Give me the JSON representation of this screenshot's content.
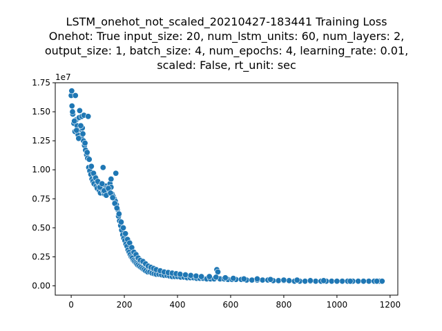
{
  "chart_data": {
    "type": "scatter",
    "title_lines": [
      "LSTM_onehot_not_scaled_20210427-183441 Training Loss",
      "Onehot: True input_size: 20, num_lstm_units: 60, num_layers: 2,",
      "output_size: 1, batch_size: 4, num_epochs: 4, learning_rate: 0.01,",
      "scaled: False, rt_unit: sec"
    ],
    "xlabel": "",
    "ylabel": "",
    "y_offset_label": "1e7",
    "xlim": [
      -60,
      1229
    ],
    "ylim": [
      -0.08,
      1.75
    ],
    "x_ticks": [
      {
        "value": 0,
        "label": "0"
      },
      {
        "value": 200,
        "label": "200"
      },
      {
        "value": 400,
        "label": "400"
      },
      {
        "value": 600,
        "label": "600"
      },
      {
        "value": 800,
        "label": "800"
      },
      {
        "value": 1000,
        "label": "1000"
      },
      {
        "value": 1200,
        "label": "1200"
      }
    ],
    "y_ticks": [
      {
        "value": 0.0,
        "label": "0.00"
      },
      {
        "value": 0.25,
        "label": "0.25"
      },
      {
        "value": 0.5,
        "label": "0.50"
      },
      {
        "value": 0.75,
        "label": "0.75"
      },
      {
        "value": 1.0,
        "label": "1.00"
      },
      {
        "value": 1.25,
        "label": "1.25"
      },
      {
        "value": 1.5,
        "label": "1.50"
      },
      {
        "value": 1.75,
        "label": "1.75"
      }
    ],
    "grid": false,
    "marker_color": "#1f77b4",
    "marker_edge_color": "#ffffff",
    "series": [
      {
        "x": [
          0,
          3,
          6,
          10,
          14,
          18,
          22,
          26,
          30,
          34,
          38,
          42,
          46,
          50,
          54,
          58,
          62,
          66,
          70,
          74,
          78,
          82,
          86,
          90,
          94,
          98,
          102,
          106,
          110,
          114,
          118,
          122,
          126,
          130,
          134,
          138,
          142,
          146,
          150,
          154,
          158,
          162,
          166,
          170,
          174,
          178,
          182,
          186,
          190,
          194,
          198,
          202,
          206,
          210,
          214,
          218,
          222,
          226,
          230,
          234,
          238,
          242,
          246,
          250,
          256,
          262,
          268,
          274,
          280,
          288,
          296,
          304,
          312,
          320,
          330,
          340,
          350,
          360,
          370,
          380,
          390,
          400,
          412,
          424,
          436,
          448,
          460,
          472,
          484,
          496,
          510,
          524,
          538,
          548,
          552,
          560,
          575,
          590,
          605,
          620,
          640,
          660,
          680,
          700,
          720,
          740,
          760,
          780,
          800,
          820,
          840,
          860,
          880,
          900,
          920,
          940,
          960,
          980,
          1000,
          1020,
          1040,
          1060,
          1080,
          1100,
          1120,
          1140,
          1160,
          1170,
          5,
          12,
          20,
          28,
          36,
          44,
          52,
          60,
          68,
          76,
          84,
          92,
          100,
          108,
          116,
          124,
          132,
          140,
          148,
          156,
          164,
          172,
          180,
          188,
          196,
          204,
          212,
          220,
          228,
          236,
          244,
          252,
          260,
          270,
          280,
          290,
          300,
          310,
          320,
          335,
          350,
          365,
          380,
          395,
          410,
          430,
          450,
          470,
          490,
          520,
          545,
          580,
          610,
          650,
          700,
          750,
          800,
          850,
          900,
          950,
          1000,
          1050,
          1100,
          1150,
          2,
          16,
          32,
          40,
          48,
          64,
          120,
          168,
          150
        ],
        "y": [
          1.64,
          1.55,
          1.48,
          1.4,
          1.33,
          1.43,
          1.38,
          1.3,
          1.45,
          1.35,
          1.28,
          1.36,
          1.25,
          1.21,
          1.17,
          1.13,
          1.1,
          1.02,
          0.99,
          0.96,
          0.92,
          0.9,
          0.88,
          0.94,
          0.86,
          0.84,
          0.89,
          0.82,
          0.8,
          0.87,
          0.83,
          0.81,
          0.79,
          0.86,
          0.84,
          0.8,
          0.83,
          0.88,
          0.85,
          0.79,
          0.77,
          0.75,
          0.73,
          0.7,
          0.66,
          0.6,
          0.56,
          0.52,
          0.48,
          0.44,
          0.41,
          0.39,
          0.36,
          0.34,
          0.31,
          0.29,
          0.27,
          0.25,
          0.24,
          0.22,
          0.21,
          0.2,
          0.19,
          0.18,
          0.17,
          0.16,
          0.15,
          0.14,
          0.13,
          0.12,
          0.12,
          0.11,
          0.105,
          0.1,
          0.1,
          0.095,
          0.09,
          0.09,
          0.085,
          0.08,
          0.08,
          0.08,
          0.075,
          0.075,
          0.07,
          0.07,
          0.07,
          0.065,
          0.065,
          0.065,
          0.06,
          0.06,
          0.06,
          0.14,
          0.12,
          0.06,
          0.06,
          0.055,
          0.055,
          0.055,
          0.055,
          0.05,
          0.05,
          0.05,
          0.05,
          0.05,
          0.045,
          0.045,
          0.045,
          0.045,
          0.04,
          0.04,
          0.04,
          0.04,
          0.04,
          0.04,
          0.04,
          0.04,
          0.04,
          0.04,
          0.04,
          0.04,
          0.04,
          0.04,
          0.04,
          0.04,
          0.04,
          0.04,
          1.5,
          1.42,
          1.34,
          1.27,
          1.38,
          1.31,
          1.23,
          1.15,
          1.09,
          1.03,
          0.97,
          0.93,
          0.9,
          0.85,
          0.88,
          0.82,
          0.78,
          0.84,
          0.8,
          0.76,
          0.71,
          0.67,
          0.62,
          0.55,
          0.5,
          0.45,
          0.4,
          0.37,
          0.33,
          0.29,
          0.27,
          0.24,
          0.22,
          0.21,
          0.19,
          0.17,
          0.16,
          0.15,
          0.14,
          0.13,
          0.12,
          0.115,
          0.11,
          0.105,
          0.1,
          0.095,
          0.09,
          0.085,
          0.08,
          0.08,
          0.075,
          0.07,
          0.065,
          0.06,
          0.06,
          0.055,
          0.05,
          0.05,
          0.045,
          0.045,
          0.04,
          0.04,
          0.04,
          0.04,
          1.68,
          1.64,
          1.51,
          1.46,
          1.47,
          1.46,
          1.02,
          0.97,
          0.92
        ]
      }
    ]
  }
}
